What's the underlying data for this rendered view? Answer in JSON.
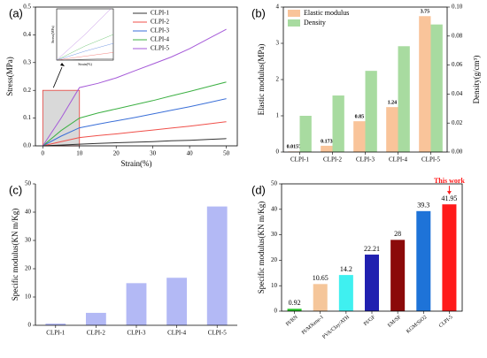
{
  "chart_data": [
    {
      "type": "line",
      "panel_label": "(a)",
      "xlabel": "Strain(%)",
      "ylabel": "Stress(MPa)",
      "x": [
        0,
        5,
        10,
        15,
        20,
        25,
        30,
        35,
        40,
        45,
        50
      ],
      "series": [
        {
          "name": "CLPI-1",
          "color": "#333333",
          "values": [
            0,
            0.003,
            0.006,
            0.009,
            0.011,
            0.013,
            0.015,
            0.018,
            0.02,
            0.023,
            0.026
          ]
        },
        {
          "name": "CLPI-2",
          "color": "#f0504a",
          "values": [
            0,
            0.015,
            0.03,
            0.037,
            0.043,
            0.05,
            0.057,
            0.064,
            0.071,
            0.079,
            0.087
          ]
        },
        {
          "name": "CLPI-3",
          "color": "#3a6fd8",
          "values": [
            0,
            0.035,
            0.065,
            0.078,
            0.09,
            0.102,
            0.115,
            0.128,
            0.141,
            0.155,
            0.17
          ]
        },
        {
          "name": "CLPI-4",
          "color": "#3cb043",
          "values": [
            0,
            0.055,
            0.1,
            0.118,
            0.133,
            0.148,
            0.163,
            0.18,
            0.196,
            0.213,
            0.23
          ]
        },
        {
          "name": "CLPI-5",
          "color": "#a55ad8",
          "values": [
            0,
            0.1,
            0.21,
            0.225,
            0.245,
            0.27,
            0.295,
            0.32,
            0.35,
            0.385,
            0.42
          ]
        }
      ],
      "xlim": [
        -2,
        53
      ],
      "ylim": [
        0,
        0.5
      ],
      "xticks": [
        0,
        10,
        20,
        30,
        40,
        50
      ],
      "yticks": [
        {
          "value": 0,
          "label": "0.0"
        },
        0.1,
        0.2,
        0.3,
        0.4,
        0.5
      ],
      "legend": "upper right",
      "inset_xlim": [
        0,
        10
      ],
      "inset_ylim": [
        0,
        0.2
      ]
    },
    {
      "type": "bar",
      "panel_label": "(b)",
      "ylabel": "Elastic modulus(MPa)",
      "y2label": "Density(g/cm³)",
      "categories": [
        "CLPI-1",
        "CLPI-2",
        "CLPI-3",
        "CLPI-4",
        "CLPI-5"
      ],
      "series": [
        {
          "name": "Elastic modulus",
          "color": "#f9c49a",
          "values": [
            0.0157,
            0.173,
            0.85,
            1.24,
            3.75
          ]
        },
        {
          "name": "Density",
          "color": "#a8dba0",
          "axis": "y2",
          "values": [
            0.025,
            0.039,
            0.056,
            0.073,
            0.088
          ]
        }
      ],
      "ylim": [
        0,
        4
      ],
      "yticks": [
        0,
        1,
        2,
        3,
        4
      ],
      "y2lim": [
        0,
        0.1
      ],
      "y2ticks": [
        {
          "value": 0,
          "label": "0.00"
        },
        0.02,
        0.04,
        0.06,
        0.08,
        {
          "value": 0.1,
          "label": "0.10"
        }
      ],
      "legend": "upper left"
    },
    {
      "type": "bar",
      "panel_label": "(c)",
      "ylabel": "Specific modulus(KN m/Kg)",
      "categories": [
        "CLPI-1",
        "CLPI-2",
        "CLPI-3",
        "CLPI-4",
        "CLPI-5"
      ],
      "values": [
        0.6,
        4.4,
        14.9,
        16.8,
        42
      ],
      "color": "#b3b9f5",
      "ylim": [
        0,
        50
      ],
      "yticks": [
        0,
        10,
        20,
        30,
        40,
        50
      ]
    },
    {
      "type": "bar",
      "panel_label": "(d)",
      "ylabel": "Specific modulus(KN m/Kg)",
      "categories": [
        "PI/BN",
        "PI/MXene-1",
        "PVA/Clay/ATH",
        "PI/GF",
        "EM/SF",
        "KGM/SiO2",
        "CLPI-5"
      ],
      "values": [
        0.92,
        10.65,
        14.2,
        22.21,
        28,
        39.3,
        41.95
      ],
      "colors": [
        "#22c022",
        "#f5c69a",
        "#3ff0f0",
        "#2020b0",
        "#8b0a0a",
        "#1e73d8",
        "#ff1a1a"
      ],
      "ylim": [
        0,
        50
      ],
      "yticks": [
        0,
        10,
        20,
        30,
        40,
        50
      ],
      "annotation": "This work"
    }
  ]
}
